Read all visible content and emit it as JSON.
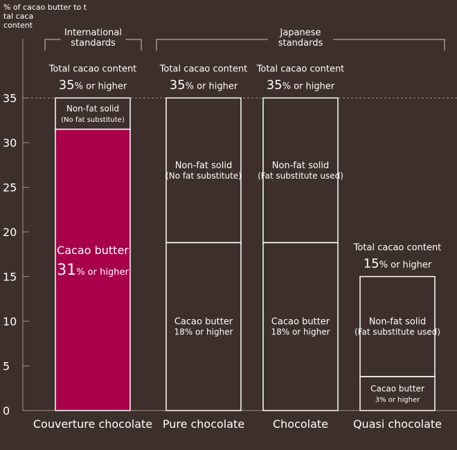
{
  "colors": {
    "background": "#3d2f2c",
    "cacao_butter_highlight": "#a8004a",
    "lines": "#ffffff",
    "grid": "#a09590"
  },
  "chart_data": {
    "type": "stacked-bar",
    "ylabel": "% of cacao butter to total cacao content",
    "ylim": [
      0,
      35
    ],
    "yticks": [
      0,
      5,
      10,
      15,
      20,
      25,
      30,
      35
    ],
    "grid": "dashed line at 35",
    "groups": [
      {
        "label": "International standards",
        "categories": [
          "Couverture chocolate"
        ]
      },
      {
        "label": "Japanese standards",
        "categories": [
          "Pure chocolate",
          "Chocolate",
          "Quasi chocolate"
        ]
      }
    ],
    "bars": [
      {
        "category": "Couverture chocolate",
        "total": 35,
        "total_label": "Total cacao content",
        "total_big": "35",
        "total_suffix": "% or higher",
        "segments": [
          {
            "from": 0,
            "to": 31.5,
            "name": "Cacao butter",
            "big": "31",
            "suffix": "% or higher",
            "highlight": true
          },
          {
            "from": 31.5,
            "to": 35,
            "name": "Non-fat solid",
            "sub": "(No fat substitute)"
          }
        ]
      },
      {
        "category": "Pure chocolate",
        "total": 35,
        "total_label": "Total cacao content",
        "total_big": "35",
        "total_suffix": "% or higher",
        "segments": [
          {
            "from": 0,
            "to": 18.8,
            "name": "Cacao butter",
            "sub": "18% or higher"
          },
          {
            "from": 18.8,
            "to": 35,
            "name": "Non-fat solid",
            "sub": "(No fat substitute)"
          }
        ]
      },
      {
        "category": "Chocolate",
        "total": 35,
        "total_label": "Total cacao content",
        "total_big": "35",
        "total_suffix": "% or higher",
        "segments": [
          {
            "from": 0,
            "to": 18.8,
            "name": "Cacao butter",
            "sub": "18% or higher"
          },
          {
            "from": 18.8,
            "to": 35,
            "name": "Non-fat solid",
            "sub": "(Fat substitute used)"
          }
        ]
      },
      {
        "category": "Quasi chocolate",
        "total": 15,
        "total_label": "Total cacao content",
        "total_big": "15",
        "total_suffix": "% or higher",
        "segments": [
          {
            "from": 0,
            "to": 3.8,
            "name": "Cacao butter",
            "sub": "3% or higher"
          },
          {
            "from": 3.8,
            "to": 15,
            "name": "Non-fat solid",
            "sub": "(Fat substitute used)"
          }
        ]
      }
    ]
  }
}
